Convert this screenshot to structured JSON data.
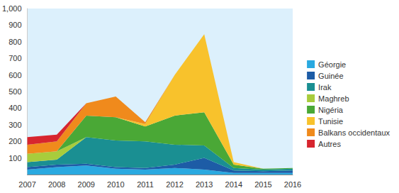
{
  "chart_data": {
    "type": "area",
    "stacked": true,
    "grid": false,
    "legend": "right",
    "categories": [
      "2007",
      "2008",
      "2009",
      "2010",
      "2011",
      "2012",
      "2013",
      "2014",
      "2015",
      "2016"
    ],
    "ylim": [
      0,
      1000
    ],
    "yticks": [
      100,
      200,
      300,
      400,
      500,
      600,
      700,
      800,
      900,
      1000
    ],
    "series": [
      {
        "name": "Géorgie",
        "color": "#2aa9e0",
        "values": [
          30,
          45,
          55,
          35,
          30,
          40,
          30,
          10,
          10,
          10
        ]
      },
      {
        "name": "Guinée",
        "color": "#1d5ca6",
        "values": [
          15,
          15,
          10,
          10,
          10,
          20,
          70,
          15,
          10,
          15
        ]
      },
      {
        "name": "Irak",
        "color": "#1a8f92",
        "values": [
          30,
          30,
          160,
          160,
          160,
          120,
          75,
          15,
          10,
          10
        ]
      },
      {
        "name": "Maghreb",
        "color": "#a8cc3c",
        "values": [
          50,
          50,
          0,
          0,
          0,
          0,
          0,
          0,
          0,
          0
        ]
      },
      {
        "name": "Nigéria",
        "color": "#4aa836",
        "values": [
          0,
          0,
          130,
          140,
          90,
          175,
          200,
          20,
          5,
          5
        ]
      },
      {
        "name": "Tunisie",
        "color": "#f8c22c",
        "values": [
          0,
          0,
          0,
          0,
          15,
          245,
          470,
          15,
          0,
          0
        ]
      },
      {
        "name": "Balkans occidentaux",
        "color": "#f08a1c",
        "values": [
          55,
          60,
          75,
          125,
          10,
          0,
          0,
          0,
          0,
          0
        ]
      },
      {
        "name": "Autres",
        "color": "#d7252e",
        "values": [
          45,
          40,
          0,
          0,
          0,
          0,
          0,
          0,
          0,
          0
        ]
      }
    ]
  }
}
